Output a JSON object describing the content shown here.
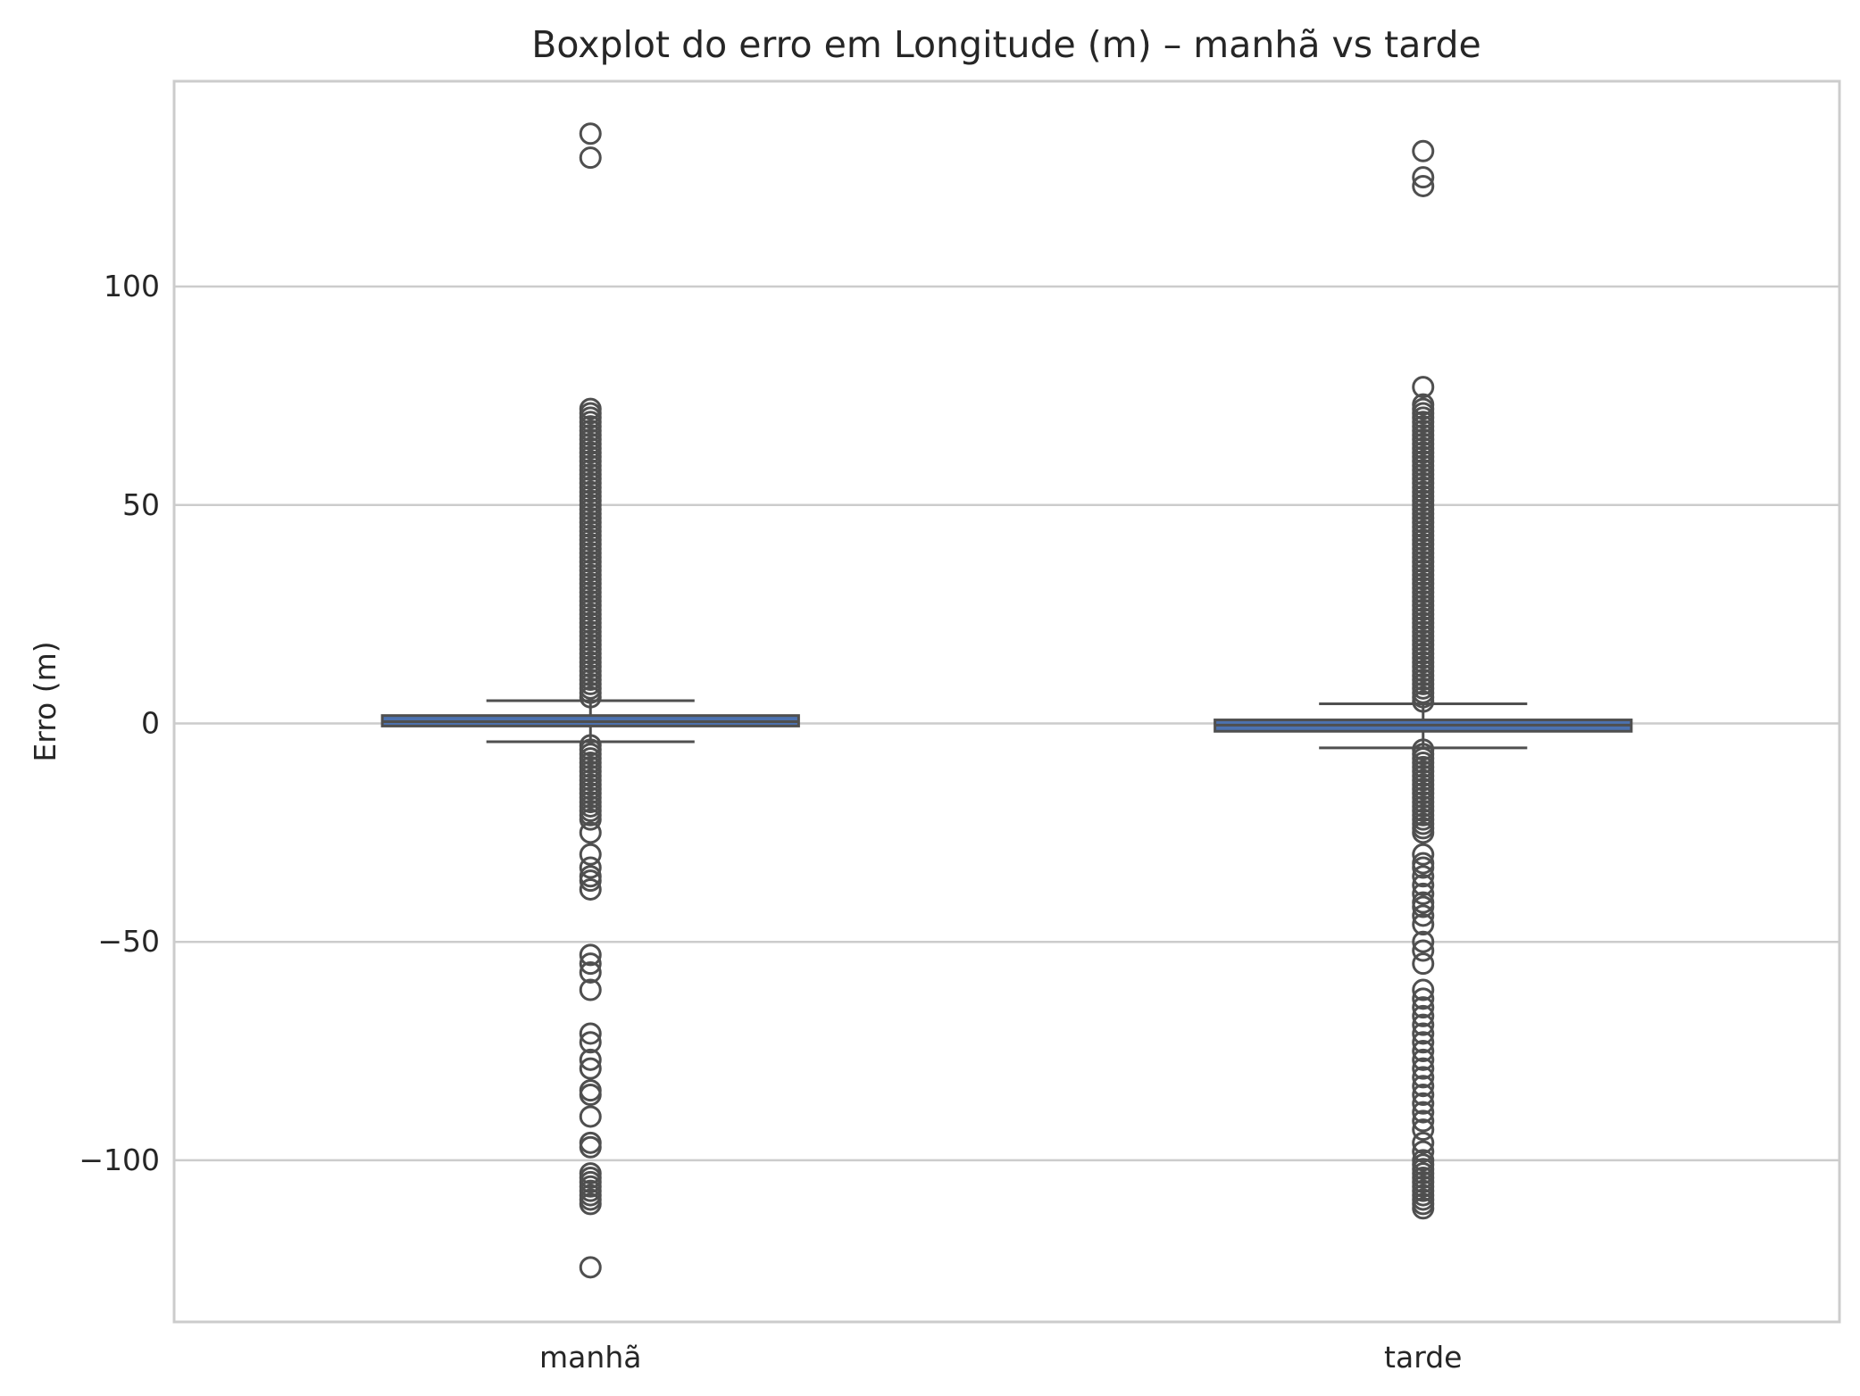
{
  "chart_data": {
    "type": "box",
    "title": "Boxplot do erro em Longitude (m) – manhã vs tarde",
    "xlabel": "",
    "ylabel": "Erro (m)",
    "ylim": [
      -137,
      147
    ],
    "yticks": [
      100,
      50,
      0,
      -50,
      -100
    ],
    "ytick_labels": [
      "100",
      "50",
      "0",
      "−50",
      "−100"
    ],
    "grid": true,
    "categories": [
      "manhã",
      "tarde"
    ],
    "colors": {
      "box_face": "#4c72b0",
      "line": "#4f4f4f",
      "grid": "#cccccc",
      "frame": "#cccccc",
      "background": "#ffffff"
    },
    "boxes": [
      {
        "category": "manhã",
        "whisker_low": -4.2,
        "q1": -0.6,
        "median": 0.4,
        "q3": 1.8,
        "whisker_high": 5.2,
        "outliers": [
          135,
          129.5,
          72,
          71,
          70,
          69,
          68,
          67,
          66,
          65,
          64,
          63,
          62,
          61,
          60,
          59,
          58,
          57,
          56,
          55,
          54,
          53,
          52,
          51,
          50,
          49,
          48,
          47,
          46,
          45,
          44,
          43,
          42,
          41,
          40,
          39,
          38,
          37,
          36,
          35,
          34,
          33,
          32,
          31,
          30,
          29,
          28,
          27,
          26,
          25,
          24,
          23,
          22,
          21,
          20,
          19,
          18,
          17,
          16,
          15,
          14,
          13,
          12,
          11,
          10,
          9,
          8,
          7,
          6,
          -5,
          -6,
          -7,
          -8,
          -9,
          -10,
          -11,
          -12,
          -13,
          -14,
          -15,
          -16,
          -17,
          -18,
          -19,
          -20,
          -21,
          -22,
          -25,
          -30,
          -33,
          -35,
          -36,
          -38,
          -53,
          -55,
          -57,
          -61,
          -71,
          -73,
          -77,
          -79,
          -84,
          -85,
          -90,
          -96,
          -97,
          -103,
          -104,
          -105,
          -106,
          -107,
          -108,
          -109,
          -110,
          -124.5
        ]
      },
      {
        "category": "tarde",
        "whisker_low": -5.6,
        "q1": -1.8,
        "median": -0.4,
        "q3": 0.8,
        "whisker_high": 4.5,
        "outliers": [
          131,
          125,
          123,
          77,
          73,
          72,
          71,
          70,
          69,
          68,
          67,
          66,
          65,
          64,
          63,
          62,
          61,
          60,
          59,
          58,
          57,
          56,
          55,
          54,
          53,
          52,
          51,
          50,
          49,
          48,
          47,
          46,
          45,
          44,
          43,
          42,
          41,
          40,
          39,
          38,
          37,
          36,
          35,
          34,
          33,
          32,
          31,
          30,
          29,
          28,
          27,
          26,
          25,
          24,
          23,
          22,
          21,
          20,
          19,
          18,
          17,
          16,
          15,
          14,
          13,
          12,
          11,
          10,
          9,
          8,
          7,
          6,
          5,
          -6,
          -7,
          -8,
          -9,
          -10,
          -11,
          -12,
          -13,
          -14,
          -15,
          -16,
          -17,
          -18,
          -19,
          -20,
          -21,
          -22,
          -23,
          -24,
          -25,
          -30,
          -32,
          -33,
          -35,
          -37,
          -39,
          -41,
          -42,
          -44,
          -46,
          -50,
          -52,
          -55,
          -61,
          -63,
          -65,
          -67,
          -69,
          -71,
          -73,
          -75,
          -77,
          -79,
          -81,
          -83,
          -85,
          -87,
          -89,
          -91,
          -93,
          -96,
          -98,
          -100,
          -101,
          -102,
          -103,
          -104,
          -105,
          -106,
          -107,
          -108,
          -109,
          -110,
          -111
        ]
      }
    ]
  }
}
